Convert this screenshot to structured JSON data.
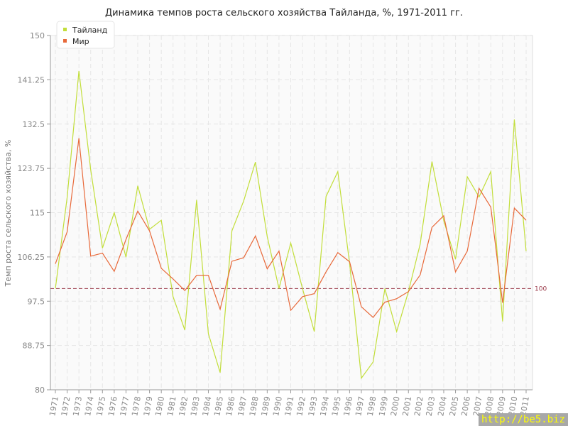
{
  "chart_data": {
    "type": "line",
    "title": "Динамика темпов роста сельского хозяйства Тайланда, %, 1971-2011 гг.",
    "ylabel": "Темп роста сельского хозяйства, %",
    "xlabel": "",
    "ylim": [
      80,
      150
    ],
    "yticks": [
      "80",
      "88.75",
      "97.5",
      "106.25",
      "115",
      "123.75",
      "132.5",
      "141.25",
      "150"
    ],
    "grid": true,
    "legend": "top-left",
    "reference_line": {
      "value": 100,
      "label": "100",
      "color": "#9b3a4a"
    },
    "x": [
      1971,
      1972,
      1973,
      1974,
      1975,
      1976,
      1977,
      1978,
      1979,
      1980,
      1981,
      1982,
      1983,
      1984,
      1985,
      1986,
      1987,
      1988,
      1989,
      1990,
      1991,
      1992,
      1993,
      1994,
      1995,
      1996,
      1997,
      1998,
      1999,
      2000,
      2001,
      2002,
      2003,
      2004,
      2005,
      2006,
      2007,
      2008,
      2009,
      2010,
      2011
    ],
    "series": [
      {
        "name": "Тайланд",
        "color": "#c2de3a",
        "values": [
          100,
          118,
          143,
          123.5,
          108,
          115,
          106.2,
          120.3,
          111.7,
          113.5,
          98.4,
          91.8,
          117.5,
          91.1,
          83.4,
          111.4,
          117.3,
          125,
          110.3,
          100,
          109,
          100,
          91.5,
          118.2,
          123.1,
          105,
          82.3,
          85.5,
          100,
          91.5,
          99.4,
          108.8,
          125.1,
          113.4,
          105.8,
          122.1,
          118.1,
          123.1,
          93.5,
          133.4,
          107.4
        ]
      },
      {
        "name": "Мир",
        "color": "#e8693a",
        "values": [
          104.9,
          111.2,
          129.7,
          106.4,
          107,
          103.4,
          109.7,
          115.3,
          111.4,
          104,
          101.9,
          99.6,
          102.6,
          102.6,
          95.9,
          105.4,
          106.1,
          110.4,
          103.9,
          107.4,
          95.7,
          98.4,
          99,
          103.3,
          107.1,
          105.3,
          96.4,
          94.3,
          97.3,
          98,
          99.4,
          102.7,
          112.1,
          114.4,
          103.3,
          107.4,
          119.8,
          116.1,
          97.2,
          115.9,
          113.5
        ]
      }
    ]
  },
  "watermark": "http://be5.biz"
}
